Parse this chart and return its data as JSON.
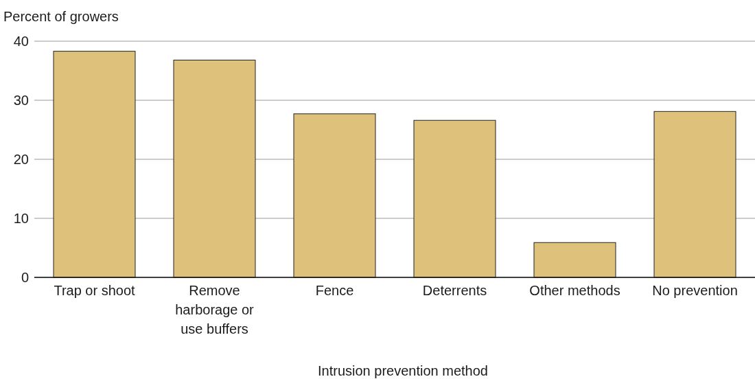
{
  "chart_data": {
    "type": "bar",
    "ylabel": "Percent of growers",
    "xlabel": "Intrusion prevention method",
    "categories": [
      "Trap or shoot",
      "Remove harborage or use buffers",
      "Fence",
      "Deterrents",
      "Other methods",
      "No prevention"
    ],
    "values": [
      38.3,
      36.8,
      27.7,
      26.6,
      5.9,
      28.1
    ],
    "color": "#dec17b",
    "ylim": [
      0,
      40
    ],
    "yticks": [
      0,
      10,
      20,
      30,
      40
    ],
    "grid": "y"
  }
}
